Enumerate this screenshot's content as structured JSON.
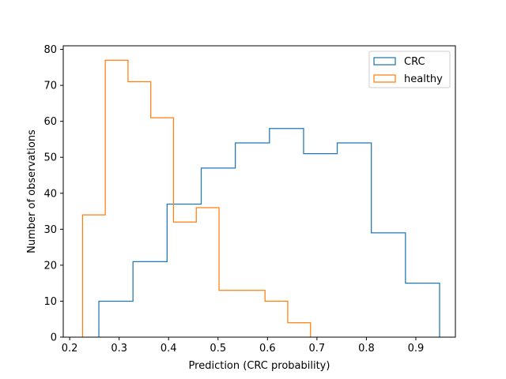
{
  "chart_data": {
    "type": "histogram-step",
    "xlabel": "Prediction (CRC probability)",
    "ylabel": "Number of observations",
    "xlim": [
      0.187,
      0.98
    ],
    "ylim": [
      0,
      81
    ],
    "xticks": [
      0.2,
      0.3,
      0.4,
      0.5,
      0.6,
      0.7,
      0.8,
      0.9
    ],
    "yticks": [
      0,
      10,
      20,
      30,
      40,
      50,
      60,
      70,
      80
    ],
    "grid": false,
    "legend_position": "top-right",
    "series": [
      {
        "name": "CRC",
        "color": "#1f77b4",
        "edges": [
          0.259,
          0.328,
          0.397,
          0.466,
          0.535,
          0.604,
          0.673,
          0.741,
          0.81,
          0.879,
          0.948
        ],
        "counts": [
          10,
          21,
          37,
          47,
          54,
          58,
          51,
          54,
          29,
          15
        ]
      },
      {
        "name": "healthy",
        "color": "#ff7f0e",
        "edges": [
          0.226,
          0.272,
          0.318,
          0.364,
          0.41,
          0.456,
          0.502,
          0.548,
          0.595,
          0.641,
          0.687
        ],
        "counts": [
          34,
          77,
          71,
          61,
          32,
          36,
          13,
          13,
          10,
          4
        ]
      }
    ]
  }
}
